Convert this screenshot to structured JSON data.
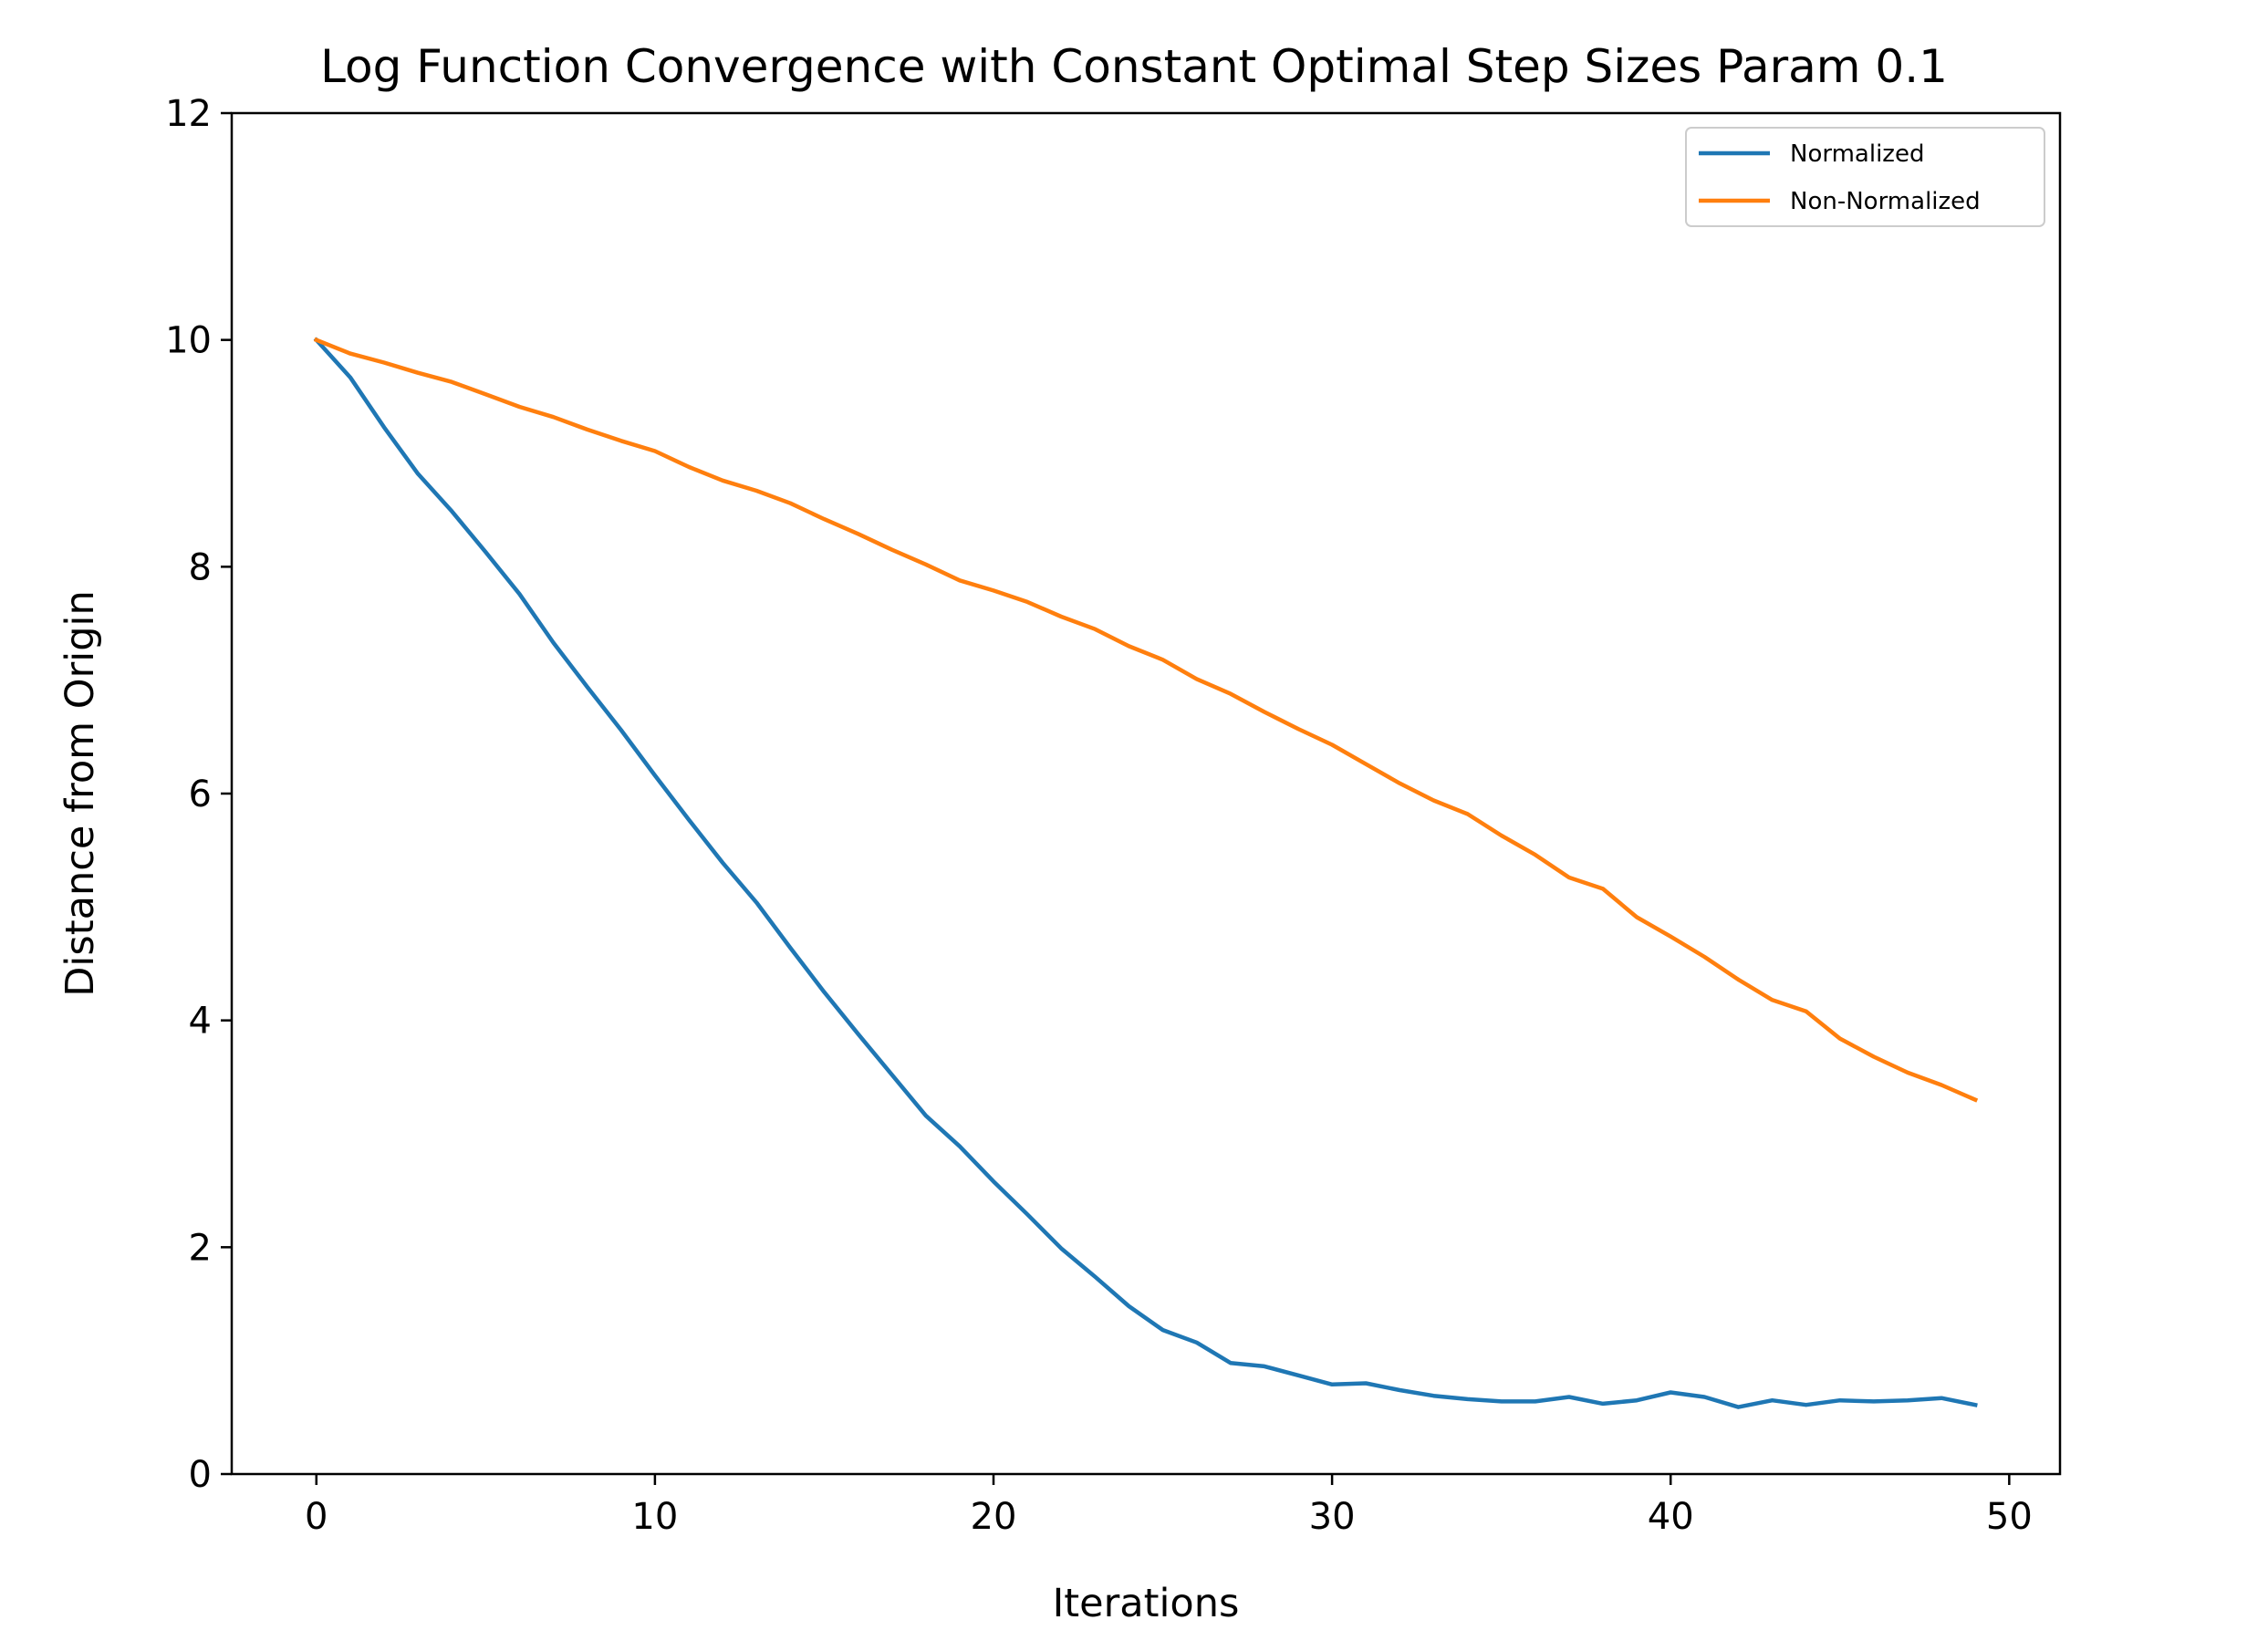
{
  "chart_data": {
    "type": "line",
    "title": "Log Function Convergence with Constant Optimal Step Sizes Param 0.1",
    "xlabel": "Iterations",
    "ylabel": "Distance from Origin",
    "xlim": [
      -2.5,
      51.5
    ],
    "ylim": [
      0,
      12
    ],
    "xticks": [
      "0",
      "10",
      "20",
      "30",
      "40",
      "50"
    ],
    "xtick_values": [
      0,
      10,
      20,
      30,
      40,
      50
    ],
    "yticks": [
      "0",
      "2",
      "4",
      "6",
      "8",
      "10",
      "12"
    ],
    "ytick_values": [
      0,
      2,
      4,
      6,
      8,
      10,
      12
    ],
    "grid": false,
    "legend_position": "top-right",
    "x": [
      0,
      1,
      2,
      3,
      4,
      5,
      6,
      7,
      8,
      9,
      10,
      11,
      12,
      13,
      14,
      15,
      16,
      17,
      18,
      19,
      20,
      21,
      22,
      23,
      24,
      25,
      26,
      27,
      28,
      29,
      30,
      31,
      32,
      33,
      34,
      35,
      36,
      37,
      38,
      39,
      40,
      41,
      42,
      43,
      44,
      45,
      46,
      47,
      48,
      49
    ],
    "series": [
      {
        "name": "Normalized",
        "color": "#1f77b4",
        "values": [
          10.0,
          9.67,
          9.23,
          8.82,
          8.49,
          8.13,
          7.76,
          7.33,
          6.94,
          6.56,
          6.16,
          5.77,
          5.39,
          5.04,
          4.64,
          4.25,
          3.88,
          3.52,
          3.16,
          2.89,
          2.58,
          2.29,
          1.99,
          1.74,
          1.48,
          1.27,
          1.16,
          0.98,
          0.95,
          0.87,
          0.79,
          0.8,
          0.74,
          0.69,
          0.66,
          0.64,
          0.64,
          0.68,
          0.62,
          0.65,
          0.72,
          0.68,
          0.59,
          0.65,
          0.61,
          0.65,
          0.64,
          0.65,
          0.67,
          0.61
        ]
      },
      {
        "name": "Non-Normalized",
        "color": "#ff7f0e",
        "values": [
          10.0,
          9.88,
          9.8,
          9.71,
          9.63,
          9.52,
          9.41,
          9.32,
          9.21,
          9.11,
          9.02,
          8.88,
          8.76,
          8.67,
          8.56,
          8.42,
          8.29,
          8.15,
          8.02,
          7.88,
          7.79,
          7.69,
          7.56,
          7.45,
          7.3,
          7.18,
          7.01,
          6.88,
          6.72,
          6.57,
          6.43,
          6.26,
          6.09,
          5.94,
          5.82,
          5.63,
          5.46,
          5.26,
          5.16,
          4.91,
          4.74,
          4.56,
          4.36,
          4.18,
          4.08,
          3.84,
          3.68,
          3.54,
          3.43,
          3.3
        ]
      }
    ]
  }
}
